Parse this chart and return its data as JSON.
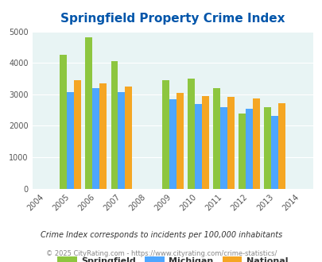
{
  "title": "Springfield Property Crime Index",
  "all_years": [
    2004,
    2005,
    2006,
    2007,
    2008,
    2009,
    2010,
    2011,
    2012,
    2013,
    2014
  ],
  "data_years": [
    2005,
    2006,
    2007,
    2009,
    2010,
    2011,
    2012,
    2013
  ],
  "springfield": [
    4250,
    4820,
    4050,
    3450,
    3500,
    3200,
    2400,
    2600
  ],
  "michigan": [
    3080,
    3200,
    3060,
    2840,
    2680,
    2600,
    2540,
    2320
  ],
  "national": [
    3440,
    3340,
    3240,
    3040,
    2950,
    2920,
    2880,
    2720
  ],
  "color_springfield": "#8dc63f",
  "color_michigan": "#4da6ff",
  "color_national": "#f5a623",
  "bg_color": "#e8f4f4",
  "ylim": [
    0,
    5000
  ],
  "yticks": [
    0,
    1000,
    2000,
    3000,
    4000,
    5000
  ],
  "tick_color": "#555555",
  "title_color": "#0055aa",
  "legend_labels": [
    "Springfield",
    "Michigan",
    "National"
  ],
  "note": "Crime Index corresponds to incidents per 100,000 inhabitants",
  "copyright": "© 2025 CityRating.com - https://www.cityrating.com/crime-statistics/"
}
